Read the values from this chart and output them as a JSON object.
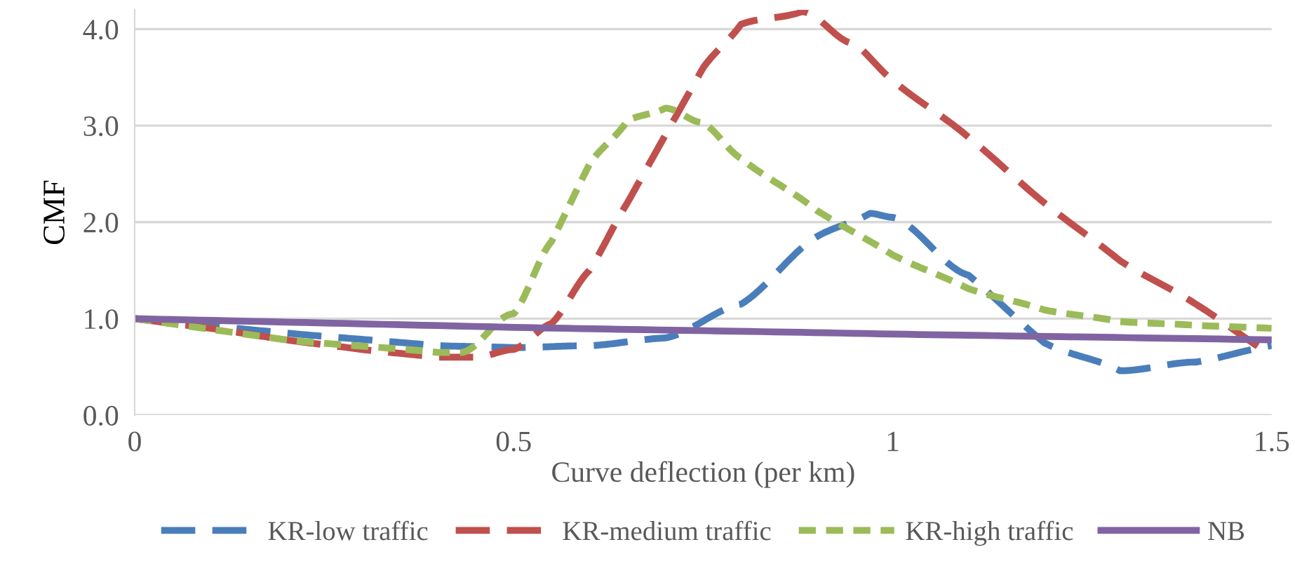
{
  "chart_data": {
    "type": "line",
    "xlabel": "Curve deflection (per km)",
    "ylabel": "CMF",
    "xlim": [
      0,
      1.5
    ],
    "xticks": [
      0,
      0.5,
      1,
      1.5
    ],
    "ylim": [
      0,
      4.2
    ],
    "yticks": [
      {
        "value": 0,
        "label": "0.0"
      },
      {
        "value": 1,
        "label": "1.0"
      },
      {
        "value": 2,
        "label": "2.0"
      },
      {
        "value": 3,
        "label": "3.0"
      },
      {
        "value": 4,
        "label": "4.0"
      }
    ],
    "grid": "y",
    "legend": "bottom",
    "marker": "none",
    "series": [
      {
        "name": "KR-low traffic",
        "color": "#4a7ebb",
        "line_style": "dashed",
        "x": [
          0,
          0.2,
          0.4,
          0.5,
          0.6,
          0.7,
          0.8,
          0.9,
          0.97,
          1.0,
          1.1,
          1.2,
          1.3,
          1.4,
          1.5
        ],
        "values": [
          1.0,
          0.85,
          0.72,
          0.7,
          0.72,
          0.8,
          1.15,
          1.85,
          2.09,
          2.05,
          1.45,
          0.75,
          0.46,
          0.55,
          0.72
        ]
      },
      {
        "name": "KR-medium traffic",
        "color": "#c0504d",
        "line_style": "dashed",
        "x": [
          0,
          0.1,
          0.2,
          0.3,
          0.4,
          0.45,
          0.5,
          0.55,
          0.6,
          0.65,
          0.7,
          0.75,
          0.8,
          0.88,
          0.95,
          1.0,
          1.1,
          1.2,
          1.3,
          1.4,
          1.5
        ],
        "values": [
          1.0,
          0.9,
          0.78,
          0.68,
          0.6,
          0.6,
          0.68,
          0.95,
          1.5,
          2.2,
          2.9,
          3.6,
          4.05,
          4.18,
          3.85,
          3.47,
          2.88,
          2.2,
          1.6,
          1.15,
          0.62
        ]
      },
      {
        "name": "KR-high traffic",
        "color": "#9bbb59",
        "line_style": "dotted",
        "x": [
          0,
          0.2,
          0.4,
          0.43,
          0.5,
          0.55,
          0.6,
          0.65,
          0.7,
          0.75,
          0.8,
          0.9,
          1.0,
          1.1,
          1.2,
          1.3,
          1.4,
          1.5
        ],
        "values": [
          1.0,
          0.78,
          0.65,
          0.65,
          1.05,
          1.8,
          2.6,
          3.05,
          3.18,
          3.03,
          2.66,
          2.12,
          1.66,
          1.31,
          1.09,
          0.97,
          0.93,
          0.9
        ]
      },
      {
        "name": "NB",
        "color": "#8064a2",
        "line_style": "solid",
        "x": [
          0,
          0.5,
          1.0,
          1.5
        ],
        "values": [
          1.0,
          0.91,
          0.84,
          0.78
        ]
      }
    ]
  }
}
